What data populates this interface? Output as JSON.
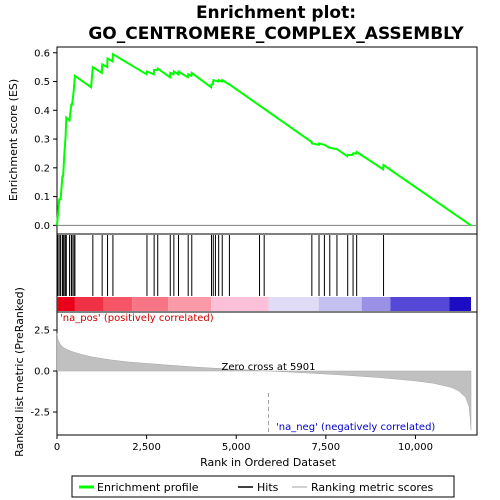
{
  "chart_data": {
    "type": "line",
    "title_line1": "Enrichment plot:",
    "title_line2": "GO_CENTROMERE_COMPLEX_ASSEMBLY",
    "top_panel": {
      "ylabel": "Enrichment score (ES)",
      "ylim": [
        -0.03,
        0.62
      ],
      "yticks": [
        0.0,
        0.1,
        0.2,
        0.3,
        0.4,
        0.5,
        0.6
      ],
      "ytick_labels": [
        "0.0",
        "0.1",
        "0.2",
        "0.3",
        "0.4",
        "0.5",
        "0.6"
      ],
      "series": [
        {
          "name": "Enrichment profile",
          "color": "#00ff00",
          "x": [
            0,
            60,
            100,
            150,
            170,
            200,
            240,
            260,
            350,
            400,
            420,
            470,
            500,
            950,
            1000,
            1250,
            1260,
            1400,
            1410,
            1550,
            1560,
            2500,
            2510,
            2700,
            2710,
            2800,
            2810,
            3150,
            3160,
            3250,
            3260,
            3380,
            3390,
            3650,
            3660,
            3750,
            3760,
            4300,
            4310,
            4350,
            4360,
            4500,
            4510,
            4600,
            4610,
            4800,
            4810,
            7100,
            7110,
            7300,
            7310,
            7450,
            7460,
            7600,
            7610,
            7800,
            7810,
            8100,
            8110,
            8250,
            8260,
            8350,
            8360,
            9100,
            9110,
            11550
          ],
          "y": [
            0.0,
            0.09,
            0.09,
            0.17,
            0.17,
            0.24,
            0.31,
            0.375,
            0.365,
            0.42,
            0.42,
            0.47,
            0.52,
            0.48,
            0.55,
            0.53,
            0.56,
            0.55,
            0.58,
            0.57,
            0.595,
            0.525,
            0.535,
            0.525,
            0.54,
            0.54,
            0.545,
            0.515,
            0.53,
            0.525,
            0.535,
            0.525,
            0.535,
            0.515,
            0.525,
            0.52,
            0.53,
            0.48,
            0.49,
            0.49,
            0.505,
            0.5,
            0.505,
            0.5,
            0.505,
            0.49,
            0.49,
            0.29,
            0.285,
            0.28,
            0.285,
            0.28,
            0.28,
            0.27,
            0.27,
            0.265,
            0.265,
            0.24,
            0.245,
            0.245,
            0.25,
            0.25,
            0.255,
            0.195,
            0.21,
            0.0
          ]
        }
      ]
    },
    "hits": [
      20,
      60,
      100,
      150,
      170,
      200,
      240,
      260,
      350,
      400,
      420,
      470,
      500,
      1000,
      1260,
      1410,
      1560,
      2510,
      2710,
      2810,
      3160,
      3260,
      3390,
      3660,
      3760,
      4310,
      4360,
      4420,
      4510,
      4610,
      4810,
      5650,
      5780,
      7110,
      7310,
      7460,
      7610,
      7810,
      8110,
      8260,
      8360,
      9110
    ],
    "heat_bar": {
      "segments": [
        {
          "x0": 0,
          "x1": 500,
          "color": "#e8001a"
        },
        {
          "x0": 500,
          "x1": 1300,
          "color": "#f03045"
        },
        {
          "x0": 1300,
          "x1": 2100,
          "color": "#f55565"
        },
        {
          "x0": 2100,
          "x1": 3100,
          "color": "#f77585"
        },
        {
          "x0": 3100,
          "x1": 4300,
          "color": "#fa99a8"
        },
        {
          "x0": 4300,
          "x1": 5900,
          "color": "#fcc0d8"
        },
        {
          "x0": 5900,
          "x1": 7300,
          "color": "#e0dcf8"
        },
        {
          "x0": 7300,
          "x1": 8500,
          "color": "#c4c0f0"
        },
        {
          "x0": 8500,
          "x1": 9300,
          "color": "#9a90e6"
        },
        {
          "x0": 9300,
          "x1": 10950,
          "color": "#5548d6"
        },
        {
          "x0": 10950,
          "x1": 11550,
          "color": "#1c0cc4"
        }
      ]
    },
    "bottom_panel": {
      "ylabel": "Ranked list metric (PreRanked)",
      "xlabel": "Rank in Ordered Dataset",
      "ylim": [
        -3.9,
        3.6
      ],
      "yticks": [
        -2.5,
        0.0,
        2.5
      ],
      "ytick_labels": [
        "-2.5",
        "0.0",
        "2.5"
      ],
      "xlim": [
        0,
        11550
      ],
      "xticks": [
        0,
        2500,
        5000,
        7500,
        10000
      ],
      "xtick_labels": [
        "0",
        "2,500",
        "5,000",
        "7,500",
        "10,000"
      ],
      "metric_curve": {
        "x": [
          0,
          30,
          100,
          200,
          400,
          700,
          1000,
          1500,
          2000,
          3000,
          4000,
          5000,
          5901,
          7000,
          8000,
          9000,
          10000,
          10500,
          11000,
          11200,
          11400,
          11500,
          11530,
          11550
        ],
        "y": [
          2.3,
          1.9,
          1.6,
          1.4,
          1.2,
          1.0,
          0.85,
          0.68,
          0.55,
          0.38,
          0.22,
          0.1,
          0.0,
          -0.12,
          -0.25,
          -0.4,
          -0.6,
          -0.75,
          -1.0,
          -1.2,
          -1.6,
          -2.2,
          -3.0,
          -3.6
        ]
      },
      "zero_cross_label": "Zero cross at 5901",
      "zero_cross_x": 5901,
      "na_pos_label": "'na_pos' (positively correlated)",
      "na_neg_label": "'na_neg' (negatively correlated)"
    },
    "legend": [
      {
        "label": "Enrichment profile",
        "color": "#00ff00"
      },
      {
        "label": "Hits",
        "color": "#000000"
      },
      {
        "label": "Ranking metric scores",
        "color": "#c0c0c0"
      }
    ]
  }
}
